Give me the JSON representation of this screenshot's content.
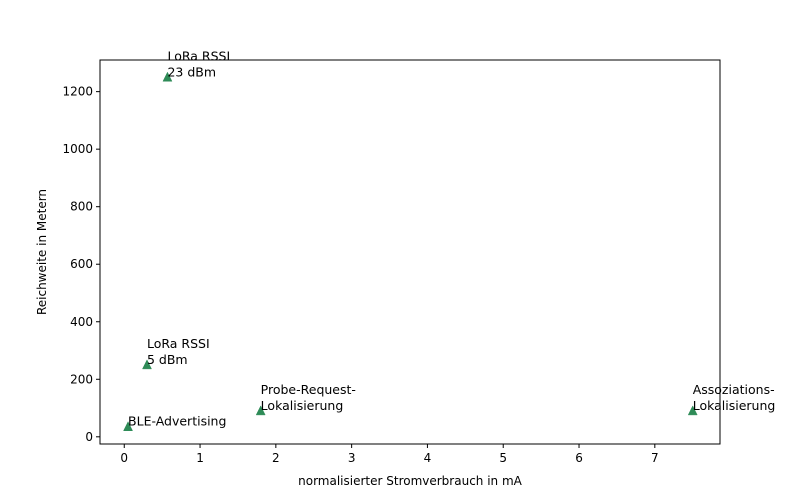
{
  "chart_data": {
    "type": "scatter",
    "title": "",
    "xlabel": "normalisierter Stromverbrauch in mA",
    "ylabel": "Reichweite in Metern",
    "xlim": [
      -0.32,
      7.86
    ],
    "ylim": [
      -25,
      1310
    ],
    "xticks": [
      0,
      1,
      2,
      3,
      4,
      5,
      6,
      7
    ],
    "yticks": [
      0,
      200,
      400,
      600,
      800,
      1000,
      1200
    ],
    "grid": false,
    "marker": "triangle",
    "color": "#2e8b57",
    "points": [
      {
        "x": 0.57,
        "y": 1250,
        "label": [
          "LoRa RSSI",
          "23 dBm"
        ]
      },
      {
        "x": 0.3,
        "y": 250,
        "label": [
          "LoRa RSSI",
          "5 dBm"
        ]
      },
      {
        "x": 0.05,
        "y": 35,
        "label": [
          "BLE-Advertising"
        ]
      },
      {
        "x": 1.8,
        "y": 90,
        "label": [
          "Probe-Request-",
          "Lokalisierung"
        ]
      },
      {
        "x": 7.5,
        "y": 90,
        "label": [
          "Assoziations-",
          "Lokalisierung"
        ]
      }
    ]
  }
}
